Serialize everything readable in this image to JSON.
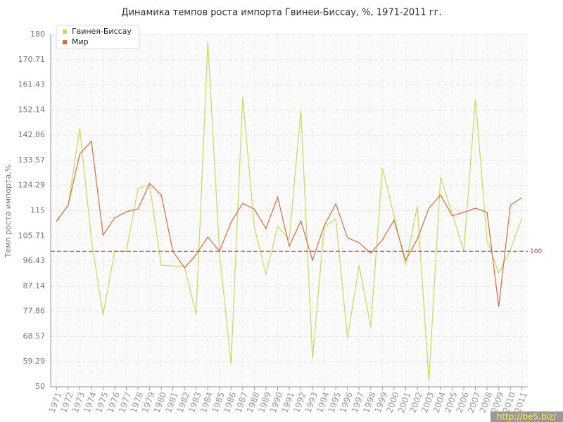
{
  "chart_data": {
    "type": "line",
    "title": "Динамика темпов роста импорта Гвинеи-Биссау, %, 1971-2011 гг.",
    "y_label": "Темп роста импорта,%",
    "watermark": "http://be5.biz/",
    "categories": [
      "1971",
      "1972",
      "1973",
      "1974",
      "1975",
      "1976",
      "1977",
      "1978",
      "1979",
      "1980",
      "1981",
      "1982",
      "1983",
      "1984",
      "1985",
      "1986",
      "1987",
      "1988",
      "1989",
      "1990",
      "1991",
      "1992",
      "1993",
      "1994",
      "1995",
      "1996",
      "1997",
      "1998",
      "1999",
      "2000",
      "2001",
      "2002",
      "2003",
      "2004",
      "2005",
      "2006",
      "2007",
      "2008",
      "2009",
      "2010",
      "2011"
    ],
    "series": [
      {
        "name": "Гвинея-Биссау",
        "color": "#c4dc5a",
        "values": [
          111.5,
          116.7,
          145.5,
          104.5,
          76.5,
          100,
          100,
          123,
          124.7,
          94.9,
          94.6,
          94.4,
          76.7,
          177.1,
          100,
          58.3,
          156.9,
          108.9,
          91.5,
          109.2,
          104.5,
          152.2,
          60.4,
          108.9,
          112,
          67.9,
          94.9,
          72.1,
          130.7,
          113.1,
          94.9,
          116.7,
          52.3,
          127.3,
          114.1,
          100,
          156.1,
          104,
          92,
          100.5,
          112.3
        ]
      },
      {
        "name": "Мир",
        "color": "#e0693c",
        "values": [
          111,
          117,
          135.9,
          140.6,
          106,
          112.3,
          114.6,
          115.6,
          125,
          120.8,
          100,
          93.9,
          98.8,
          105.3,
          100,
          110.7,
          117.7,
          115.6,
          108.4,
          120,
          101.9,
          111.2,
          96.7,
          109.4,
          117.5,
          105,
          103.2,
          99.3,
          104.2,
          111.5,
          96.7,
          104.5,
          115.9,
          120.8,
          113.1,
          114.4,
          115.9,
          114.4,
          79.6,
          117,
          119.8
        ]
      }
    ],
    "ylim": [
      50,
      180
    ],
    "yticks": [
      50,
      59.29,
      68.57,
      77.86,
      87.14,
      96.43,
      105.71,
      115,
      124.29,
      133.57,
      142.86,
      152.14,
      161.43,
      170.71,
      180
    ],
    "reference_line": 100,
    "reference_color": "#b03a4a",
    "grid": true
  }
}
